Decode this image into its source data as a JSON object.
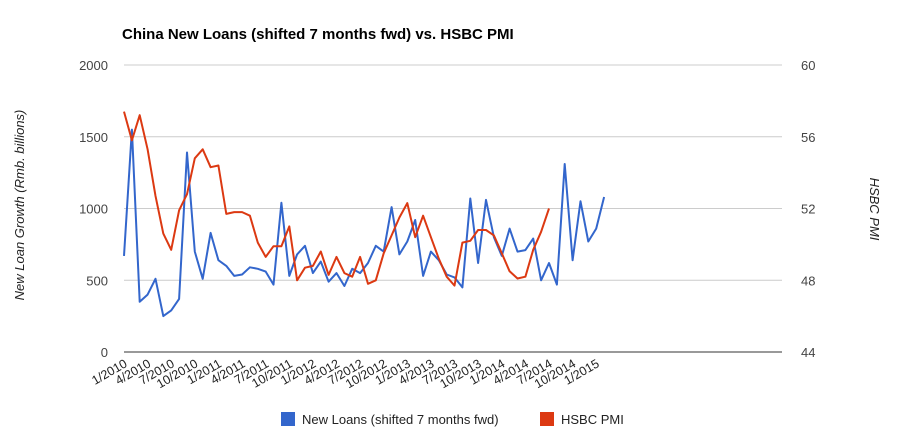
{
  "chart_data": {
    "type": "line",
    "title": "China New Loans (shifted 7 months fwd) vs. HSBC PMI",
    "y_left": {
      "label": "New Loan Growth (Rmb. billions)",
      "min": 0,
      "max": 2000,
      "ticks": [
        "0",
        "500",
        "1000",
        "1500",
        "2000"
      ]
    },
    "y_right": {
      "label": "HSBC PMI",
      "min": 44,
      "max": 60,
      "ticks": [
        "44",
        "48",
        "52",
        "56",
        "60"
      ]
    },
    "x_tick_labels": [
      "1/2010",
      "4/2010",
      "7/2010",
      "10/2010",
      "1/2011",
      "4/2011",
      "7/2011",
      "10/2011",
      "1/2012",
      "4/2012",
      "7/2012",
      "10/2012",
      "1/2013",
      "4/2013",
      "7/2013",
      "10/2013",
      "1/2014",
      "4/2014",
      "7/2014",
      "10/2014",
      "1/2015"
    ],
    "x_start": "1/2010",
    "grid": true,
    "legend_position": "bottom",
    "series": [
      {
        "name": "New Loans (shifted 7 months fwd)",
        "axis": "left",
        "color": "#3366cc",
        "values": [
          670,
          1550,
          350,
          400,
          510,
          250,
          290,
          370,
          1390,
          700,
          510,
          830,
          640,
          600,
          530,
          540,
          590,
          580,
          560,
          470,
          1040,
          530,
          680,
          740,
          550,
          630,
          490,
          550,
          460,
          580,
          550,
          620,
          740,
          700,
          1010,
          680,
          770,
          920,
          530,
          700,
          640,
          540,
          520,
          450,
          1070,
          620,
          1060,
          800,
          670,
          860,
          700,
          710,
          790,
          500,
          620,
          470,
          1310,
          640,
          1050,
          770,
          860,
          1080
        ]
      },
      {
        "name": "HSBC PMI",
        "axis": "right",
        "color": "#dc3912",
        "values": [
          57.4,
          55.8,
          57.2,
          55.3,
          52.7,
          50.6,
          49.7,
          51.9,
          52.8,
          54.8,
          55.3,
          54.3,
          54.4,
          51.7,
          51.8,
          51.8,
          51.6,
          50.1,
          49.3,
          49.9,
          49.9,
          51.0,
          48.0,
          48.7,
          48.8,
          49.6,
          48.3,
          49.3,
          48.4,
          48.2,
          49.3,
          47.8,
          48.0,
          49.5,
          50.5,
          51.5,
          52.3,
          50.4,
          51.6,
          50.4,
          49.2,
          48.2,
          47.7,
          50.1,
          50.2,
          50.8,
          50.8,
          50.5,
          49.5,
          48.5,
          48.1,
          48.2,
          49.7,
          50.7,
          52.0
        ]
      }
    ]
  }
}
